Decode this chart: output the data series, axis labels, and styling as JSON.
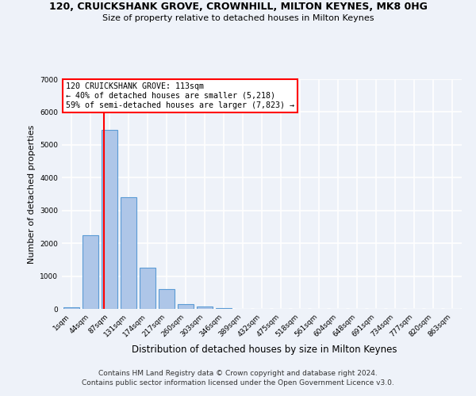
{
  "title": "120, CRUICKSHANK GROVE, CROWNHILL, MILTON KEYNES, MK8 0HG",
  "subtitle": "Size of property relative to detached houses in Milton Keynes",
  "xlabel": "Distribution of detached houses by size in Milton Keynes",
  "ylabel": "Number of detached properties",
  "footer_line1": "Contains HM Land Registry data © Crown copyright and database right 2024.",
  "footer_line2": "Contains public sector information licensed under the Open Government Licence v3.0.",
  "categories": [
    "1sqm",
    "44sqm",
    "87sqm",
    "131sqm",
    "174sqm",
    "217sqm",
    "260sqm",
    "303sqm",
    "346sqm",
    "389sqm",
    "432sqm",
    "475sqm",
    "518sqm",
    "561sqm",
    "604sqm",
    "648sqm",
    "691sqm",
    "734sqm",
    "777sqm",
    "820sqm",
    "863sqm"
  ],
  "bar_values": [
    50,
    2250,
    5450,
    3400,
    1250,
    600,
    150,
    80,
    30,
    0,
    0,
    0,
    0,
    0,
    0,
    0,
    0,
    0,
    0,
    0,
    0
  ],
  "bar_color": "#aec6e8",
  "bar_edge_color": "#5b9bd5",
  "property_label": "120 CRUICKSHANK GROVE: 113sqm",
  "pct_smaller": 40,
  "num_smaller": 5218,
  "pct_larger": 59,
  "num_larger": 7823,
  "vline_x_index": 1.72,
  "ylim": [
    0,
    7000
  ],
  "background_color": "#eef2f9",
  "grid_color": "#ffffff"
}
